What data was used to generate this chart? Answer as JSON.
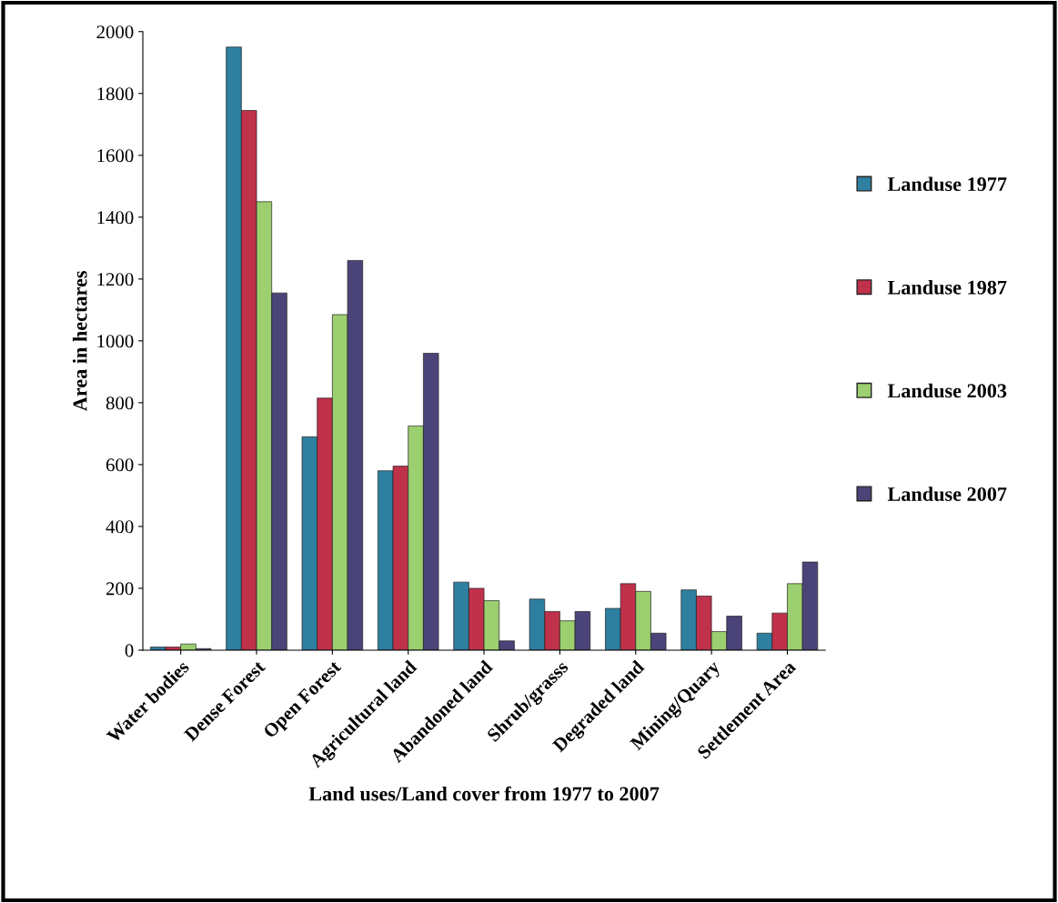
{
  "chart_data": {
    "type": "bar",
    "xlabel": "Land uses/Land cover from 1977 to 2007",
    "ylabel": "Area in hectares",
    "categories": [
      "Water bodies",
      "Dense Forest",
      "Open Forest",
      "Agricultural land",
      "Abandoned land",
      "Shrub/grasss",
      "Degraded land",
      "Mining/Quary",
      "Settlement Area"
    ],
    "series": [
      {
        "name": "Landuse 1977",
        "color": "#2e7fa0",
        "values": [
          10,
          1950,
          690,
          580,
          220,
          165,
          135,
          195,
          55
        ]
      },
      {
        "name": "Landuse 1987",
        "color": "#c0314a",
        "values": [
          10,
          1745,
          815,
          595,
          200,
          125,
          215,
          175,
          120
        ]
      },
      {
        "name": "Landuse 2003",
        "color": "#9bcf6f",
        "values": [
          20,
          1450,
          1085,
          725,
          160,
          95,
          190,
          60,
          215
        ]
      },
      {
        "name": "Landuse 2007",
        "color": "#4b4478",
        "values": [
          5,
          1155,
          1260,
          960,
          30,
          125,
          55,
          110,
          285
        ]
      }
    ],
    "ylim": [
      0,
      2000
    ],
    "yticks": [
      0,
      200,
      400,
      600,
      800,
      1000,
      1200,
      1400,
      1600,
      1800,
      2000
    ],
    "grid": false,
    "legend": "right"
  }
}
